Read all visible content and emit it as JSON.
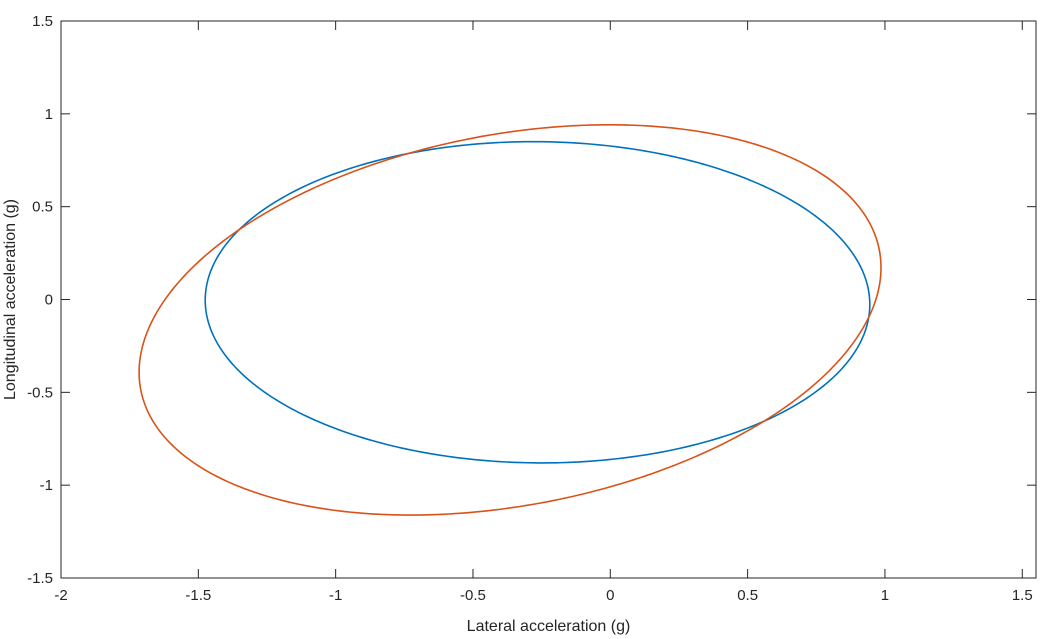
{
  "chart_data": {
    "type": "line",
    "title": "",
    "xlabel": "Lateral acceleration (g)",
    "ylabel": "Longitudinal acceleration (g)",
    "xlim": [
      -2,
      1.55
    ],
    "ylim": [
      -1.5,
      1.5
    ],
    "xticks": [
      -2,
      -1.5,
      -1,
      -0.5,
      0,
      0.5,
      1,
      1.5
    ],
    "xtick_labels": [
      "-2",
      "-1.5",
      "-1",
      "-0.5",
      "0",
      "0.5",
      "1",
      "1.5"
    ],
    "yticks": [
      -1.5,
      -1,
      -0.5,
      0,
      0.5,
      1,
      1.5
    ],
    "ytick_labels": [
      "-1.5",
      "-1",
      "-0.5",
      "0",
      "0.5",
      "1",
      "1.5"
    ],
    "grid": false,
    "box": true,
    "series": [
      {
        "color": "#0072BD",
        "ellipse": {
          "center": [
            -0.265,
            -0.015
          ],
          "semi_axes": [
            1.21,
            0.865
          ],
          "rotation_deg": -1.1
        },
        "extremes": {
          "x_min": -1.48,
          "x_max": 0.94,
          "y_min": -0.88,
          "y_max": 0.85
        }
      },
      {
        "color": "#D95319",
        "ellipse": {
          "center": [
            -0.365,
            -0.11
          ],
          "semi_axes": [
            1.41,
            0.97
          ],
          "rotation_deg": 23.3
        },
        "extremes": {
          "x_min": -1.68,
          "x_max": 0.95,
          "y_min": -1.27,
          "y_max": 1.04
        }
      }
    ]
  }
}
